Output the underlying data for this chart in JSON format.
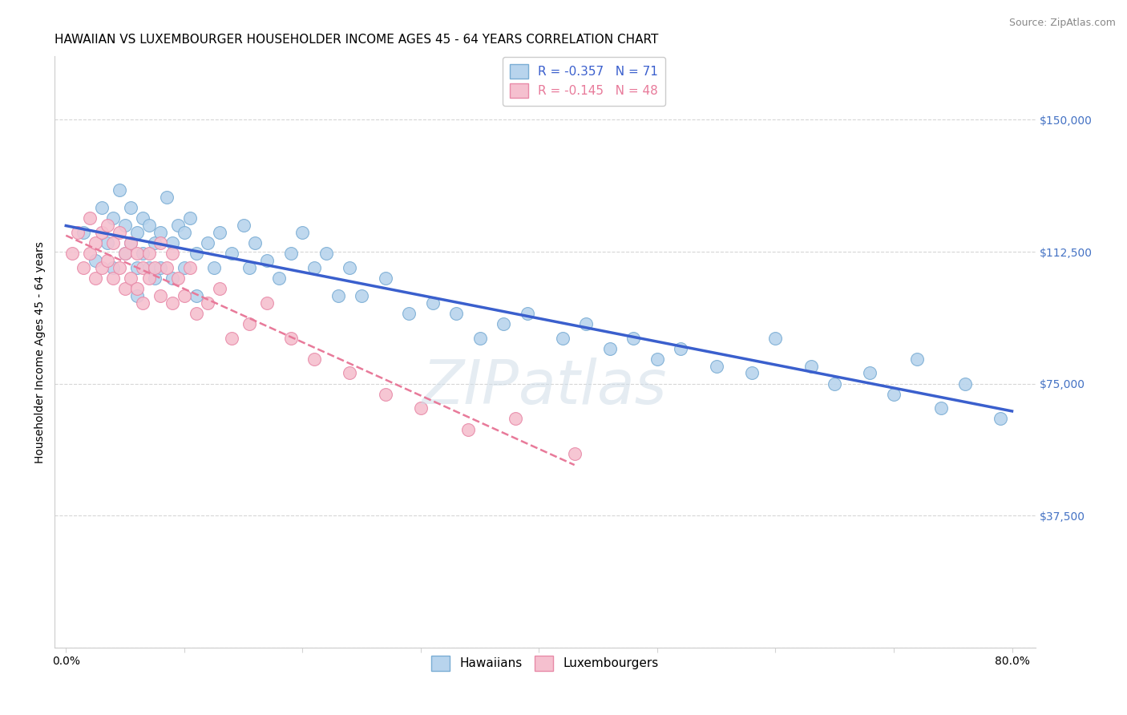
{
  "title": "HAWAIIAN VS LUXEMBOURGER HOUSEHOLDER INCOME AGES 45 - 64 YEARS CORRELATION CHART",
  "source": "Source: ZipAtlas.com",
  "ylabel": "Householder Income Ages 45 - 64 years",
  "x_ticks": [
    0.0,
    0.1,
    0.2,
    0.3,
    0.4,
    0.5,
    0.6,
    0.7,
    0.8
  ],
  "x_tick_labels": [
    "0.0%",
    "",
    "",
    "",
    "",
    "",
    "",
    "",
    "80.0%"
  ],
  "y_ticks": [
    0,
    37500,
    75000,
    112500,
    150000
  ],
  "y_tick_labels": [
    "",
    "$37,500",
    "$75,000",
    "$112,500",
    "$150,000"
  ],
  "xlim": [
    -0.01,
    0.82
  ],
  "ylim": [
    10000,
    168000
  ],
  "hawaiians_R": -0.357,
  "hawaiians_N": 71,
  "luxembourgers_R": -0.145,
  "luxembourgers_N": 48,
  "hawaiian_color": "#b8d4ed",
  "hawaiian_edge_color": "#7aadd4",
  "luxembourger_color": "#f5c0cf",
  "luxembourger_edge_color": "#e88aa8",
  "trend_hawaiian_color": "#3a5fcd",
  "trend_luxembourger_color": "#e87a9a",
  "hawaiians_x": [
    0.015,
    0.025,
    0.03,
    0.035,
    0.04,
    0.04,
    0.045,
    0.05,
    0.05,
    0.055,
    0.055,
    0.06,
    0.06,
    0.06,
    0.065,
    0.065,
    0.07,
    0.07,
    0.075,
    0.075,
    0.08,
    0.08,
    0.085,
    0.09,
    0.09,
    0.095,
    0.1,
    0.1,
    0.105,
    0.11,
    0.11,
    0.12,
    0.125,
    0.13,
    0.14,
    0.15,
    0.155,
    0.16,
    0.17,
    0.18,
    0.19,
    0.2,
    0.21,
    0.22,
    0.23,
    0.24,
    0.25,
    0.27,
    0.29,
    0.31,
    0.33,
    0.35,
    0.37,
    0.39,
    0.42,
    0.44,
    0.46,
    0.48,
    0.5,
    0.52,
    0.55,
    0.58,
    0.6,
    0.63,
    0.65,
    0.68,
    0.7,
    0.72,
    0.74,
    0.76,
    0.79
  ],
  "hawaiians_y": [
    118000,
    110000,
    125000,
    115000,
    122000,
    108000,
    130000,
    120000,
    112000,
    125000,
    115000,
    118000,
    108000,
    100000,
    122000,
    112000,
    120000,
    108000,
    115000,
    105000,
    118000,
    108000,
    128000,
    115000,
    105000,
    120000,
    118000,
    108000,
    122000,
    112000,
    100000,
    115000,
    108000,
    118000,
    112000,
    120000,
    108000,
    115000,
    110000,
    105000,
    112000,
    118000,
    108000,
    112000,
    100000,
    108000,
    100000,
    105000,
    95000,
    98000,
    95000,
    88000,
    92000,
    95000,
    88000,
    92000,
    85000,
    88000,
    82000,
    85000,
    80000,
    78000,
    88000,
    80000,
    75000,
    78000,
    72000,
    82000,
    68000,
    75000,
    65000
  ],
  "luxembourgers_x": [
    0.005,
    0.01,
    0.015,
    0.02,
    0.02,
    0.025,
    0.025,
    0.03,
    0.03,
    0.035,
    0.035,
    0.04,
    0.04,
    0.045,
    0.045,
    0.05,
    0.05,
    0.055,
    0.055,
    0.06,
    0.06,
    0.065,
    0.065,
    0.07,
    0.07,
    0.075,
    0.08,
    0.08,
    0.085,
    0.09,
    0.09,
    0.095,
    0.1,
    0.105,
    0.11,
    0.12,
    0.13,
    0.14,
    0.155,
    0.17,
    0.19,
    0.21,
    0.24,
    0.27,
    0.3,
    0.34,
    0.38,
    0.43
  ],
  "luxembourgers_y": [
    112000,
    118000,
    108000,
    122000,
    112000,
    115000,
    105000,
    118000,
    108000,
    120000,
    110000,
    115000,
    105000,
    118000,
    108000,
    112000,
    102000,
    115000,
    105000,
    112000,
    102000,
    108000,
    98000,
    112000,
    105000,
    108000,
    115000,
    100000,
    108000,
    112000,
    98000,
    105000,
    100000,
    108000,
    95000,
    98000,
    102000,
    88000,
    92000,
    98000,
    88000,
    82000,
    78000,
    72000,
    68000,
    62000,
    65000,
    55000
  ],
  "watermark": "ZIPatlas",
  "legend_hawaiian_label": "Hawaiians",
  "legend_luxembourger_label": "Luxembourgers",
  "title_fontsize": 11,
  "axis_label_fontsize": 10,
  "tick_fontsize": 10,
  "marker_size": 130
}
